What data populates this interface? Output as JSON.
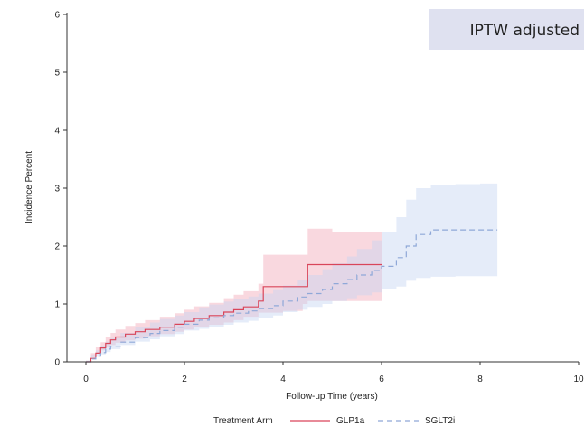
{
  "chart_data": {
    "type": "line",
    "title": "",
    "annotation": "IPTW adjusted",
    "xlabel": "Follow-up Time (years)",
    "ylabel": "Incidence Percent",
    "xlim": [
      0,
      10
    ],
    "ylim": [
      0,
      6
    ],
    "xticks": [
      0,
      2,
      4,
      6,
      8,
      10
    ],
    "yticks": [
      0,
      1,
      2,
      3,
      4,
      5,
      6
    ],
    "grid": false,
    "legend": {
      "title": "Treatment Arm",
      "placement": "bottom"
    },
    "colors": {
      "annotation_bg": "#dfe1f0"
    },
    "series": [
      {
        "name": "GLP1a",
        "color": "#d9455a",
        "band_color": "#f2a9b8",
        "dash": "solid",
        "x": [
          0,
          0.1,
          0.2,
          0.3,
          0.4,
          0.5,
          0.6,
          0.8,
          1.0,
          1.2,
          1.5,
          1.8,
          2.0,
          2.2,
          2.5,
          2.8,
          3.0,
          3.2,
          3.5,
          3.6,
          4.0,
          4.4,
          4.5,
          5.0,
          6.0
        ],
        "y": [
          0,
          0.06,
          0.15,
          0.24,
          0.32,
          0.38,
          0.43,
          0.48,
          0.52,
          0.56,
          0.6,
          0.65,
          0.7,
          0.75,
          0.8,
          0.86,
          0.9,
          0.95,
          1.05,
          1.3,
          1.3,
          1.3,
          1.68,
          1.68,
          1.68
        ],
        "lower": [
          0,
          0.02,
          0.08,
          0.14,
          0.2,
          0.25,
          0.29,
          0.33,
          0.37,
          0.4,
          0.44,
          0.48,
          0.52,
          0.56,
          0.6,
          0.64,
          0.68,
          0.72,
          0.78,
          0.85,
          0.85,
          0.88,
          1.0,
          1.05,
          1.05
        ],
        "upper": [
          0,
          0.15,
          0.25,
          0.34,
          0.43,
          0.5,
          0.56,
          0.62,
          0.67,
          0.72,
          0.78,
          0.84,
          0.9,
          0.96,
          1.02,
          1.1,
          1.16,
          1.22,
          1.35,
          1.85,
          1.85,
          1.85,
          2.3,
          2.25,
          2.2
        ]
      },
      {
        "name": "SGLT2i",
        "color": "#8fa8d8",
        "band_color": "#c5d5f2",
        "dash": "dashed",
        "x": [
          0,
          0.1,
          0.2,
          0.3,
          0.4,
          0.5,
          0.7,
          1.0,
          1.3,
          1.5,
          1.8,
          2.0,
          2.3,
          2.5,
          2.8,
          3.0,
          3.3,
          3.5,
          3.8,
          4.0,
          4.3,
          4.5,
          4.8,
          5.0,
          5.3,
          5.5,
          5.8,
          6.0,
          6.3,
          6.5,
          6.7,
          7.0,
          7.5,
          8.0,
          8.35
        ],
        "y": [
          0,
          0.05,
          0.1,
          0.16,
          0.22,
          0.27,
          0.34,
          0.42,
          0.49,
          0.54,
          0.6,
          0.65,
          0.72,
          0.76,
          0.8,
          0.84,
          0.88,
          0.92,
          0.97,
          1.05,
          1.12,
          1.18,
          1.25,
          1.35,
          1.42,
          1.5,
          1.58,
          1.65,
          1.8,
          2.0,
          2.2,
          2.28,
          2.28,
          2.28,
          2.28
        ],
        "lower": [
          0,
          0.02,
          0.05,
          0.09,
          0.13,
          0.17,
          0.22,
          0.29,
          0.35,
          0.39,
          0.44,
          0.48,
          0.54,
          0.57,
          0.61,
          0.64,
          0.68,
          0.71,
          0.75,
          0.8,
          0.86,
          0.9,
          0.95,
          1.0,
          1.05,
          1.1,
          1.15,
          1.2,
          1.25,
          1.3,
          1.4,
          1.45,
          1.47,
          1.48,
          1.48
        ],
        "upper": [
          0,
          0.12,
          0.2,
          0.28,
          0.35,
          0.41,
          0.5,
          0.6,
          0.68,
          0.74,
          0.8,
          0.86,
          0.94,
          0.99,
          1.04,
          1.08,
          1.13,
          1.18,
          1.24,
          1.32,
          1.42,
          1.5,
          1.6,
          1.7,
          1.82,
          1.95,
          2.1,
          2.25,
          2.5,
          2.8,
          3.0,
          3.05,
          3.07,
          3.08,
          3.08
        ]
      }
    ]
  }
}
